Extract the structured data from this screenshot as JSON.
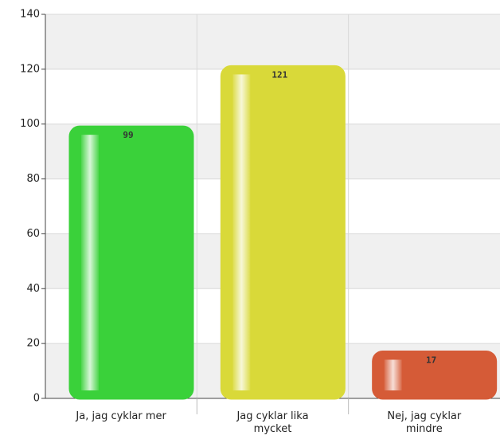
{
  "chart_data": {
    "type": "bar",
    "categories": [
      "Ja, jag cyklar mer",
      "Jag cyklar lika mycket",
      "Nej, jag cyklar mindre"
    ],
    "values": [
      99,
      121,
      17
    ],
    "colors": [
      "#3ddc3d",
      "#e4e43c",
      "#e0603a"
    ],
    "ylim": [
      0,
      140
    ],
    "yticks": [
      0,
      20,
      40,
      60,
      80,
      100,
      120,
      140
    ],
    "grid": true
  }
}
